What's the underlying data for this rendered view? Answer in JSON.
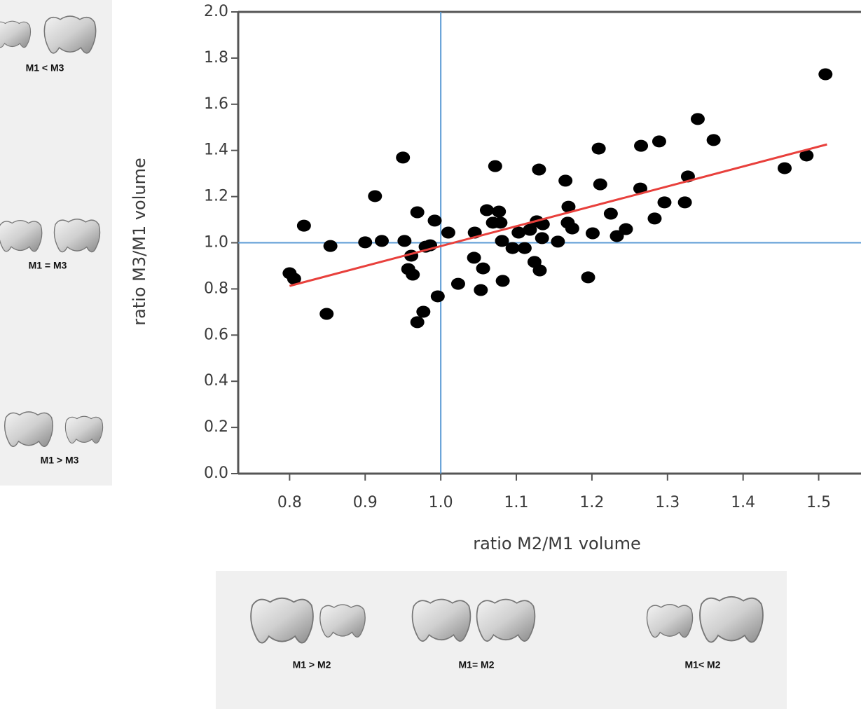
{
  "chart_data": {
    "type": "scatter",
    "x_label": "ratio M2/M1 volume",
    "y_label": "ratio M3/M1 volume",
    "x": [
      0.8,
      0.806,
      0.819,
      0.849,
      0.854,
      0.9,
      0.913,
      0.922,
      0.95,
      0.952,
      0.957,
      0.963,
      0.961,
      0.969,
      0.969,
      0.977,
      0.98,
      0.986,
      0.992,
      0.996,
      1.01,
      1.023,
      1.045,
      1.044,
      1.053,
      1.056,
      1.061,
      1.069,
      1.072,
      1.077,
      1.079,
      1.081,
      1.082,
      1.095,
      1.103,
      1.111,
      1.118,
      1.124,
      1.127,
      1.13,
      1.131,
      1.135,
      1.134,
      1.155,
      1.165,
      1.169,
      1.168,
      1.174,
      1.195,
      1.201,
      1.209,
      1.211,
      1.225,
      1.233,
      1.245,
      1.264,
      1.265,
      1.283,
      1.289,
      1.296,
      1.323,
      1.327,
      1.34,
      1.361,
      1.455,
      1.484,
      1.509
    ],
    "values": [
      0.868,
      0.844,
      1.074,
      0.692,
      0.986,
      1.002,
      1.202,
      1.008,
      1.369,
      1.008,
      0.886,
      0.862,
      0.944,
      1.132,
      0.656,
      0.701,
      0.983,
      0.989,
      1.096,
      0.768,
      1.044,
      0.822,
      1.044,
      0.935,
      0.795,
      0.889,
      1.141,
      1.087,
      1.332,
      1.135,
      1.087,
      1.008,
      0.835,
      0.977,
      1.044,
      0.977,
      1.056,
      0.917,
      1.093,
      1.317,
      0.88,
      1.08,
      1.02,
      1.005,
      1.269,
      1.156,
      1.087,
      1.062,
      0.85,
      1.041,
      1.408,
      1.253,
      1.126,
      1.029,
      1.059,
      1.235,
      1.42,
      1.105,
      1.439,
      1.175,
      1.175,
      1.287,
      1.536,
      1.445,
      1.323,
      1.378,
      1.73
    ],
    "color": "#000000",
    "trend": {
      "x": [
        0.8,
        1.511
      ],
      "y": [
        0.813,
        1.426
      ],
      "color": "#e8403c"
    },
    "reflines": {
      "x": 1.0,
      "y": 1.0,
      "color": "#5b9bd5"
    },
    "xlim": [
      0.732,
      1.556
    ],
    "ylim": [
      0,
      2.0
    ],
    "xticks": [
      0.8,
      0.9,
      {
        "value": 1.0,
        "label": "1.0"
      },
      1.1,
      1.2,
      1.3,
      1.4,
      1.5
    ],
    "yticks": [
      {
        "value": 0,
        "label": "0.0"
      },
      0.2,
      0.4,
      0.6,
      0.8,
      {
        "value": 1.0,
        "label": "1.0"
      },
      1.2,
      1.4,
      1.6,
      1.8,
      {
        "value": 2.0,
        "label": "2.0"
      }
    ],
    "grid": false,
    "annotations": [
      "M1 < M3",
      "M1 = M3",
      "M1 > M3",
      "M1 > M2",
      "M1= M2",
      "M1< M2"
    ]
  }
}
